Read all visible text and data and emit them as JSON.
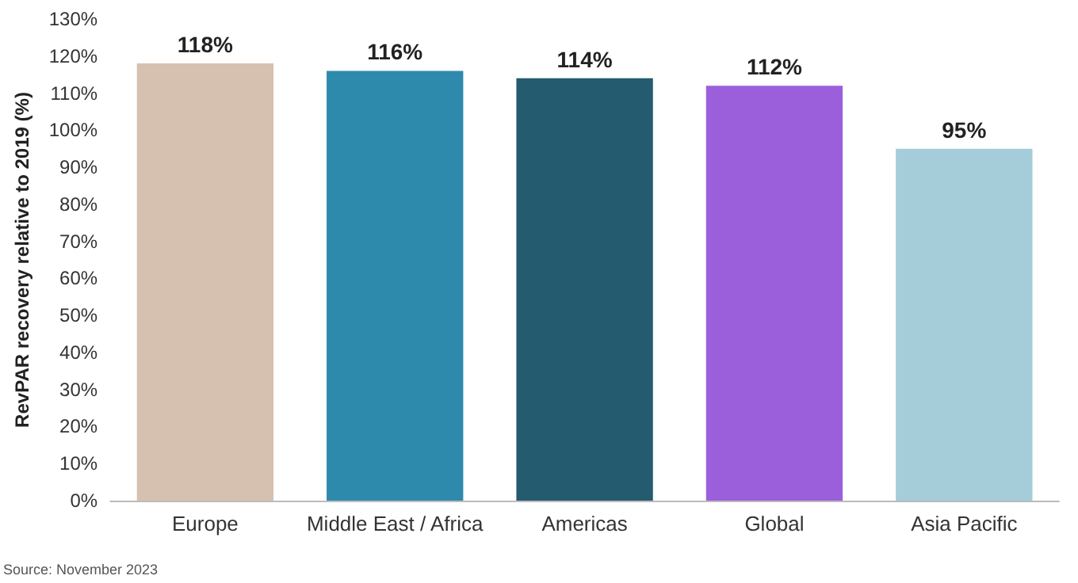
{
  "chart_data": {
    "type": "bar",
    "ylabel": "RevPAR recovery relative to 2019 (%)",
    "categories": [
      "Europe",
      "Middle East / Africa",
      "Americas",
      "Global",
      "Asia Pacific"
    ],
    "values": [
      118,
      116,
      114,
      112,
      95
    ],
    "colors": [
      "#d6c1b1",
      "#2e8aad",
      "#245b6e",
      "#9b5fdb",
      "#a4cdd9"
    ],
    "value_labels": [
      "118%",
      "116%",
      "114%",
      "112%",
      "95%"
    ],
    "ylim": [
      0,
      130
    ],
    "yticks": [
      {
        "value": 0,
        "label": "0%"
      },
      {
        "value": 10,
        "label": "10%"
      },
      {
        "value": 20,
        "label": "20%"
      },
      {
        "value": 30,
        "label": "30%"
      },
      {
        "value": 40,
        "label": "40%"
      },
      {
        "value": 50,
        "label": "50%"
      },
      {
        "value": 60,
        "label": "60%"
      },
      {
        "value": 70,
        "label": "70%"
      },
      {
        "value": 80,
        "label": "80%"
      },
      {
        "value": 90,
        "label": "90%"
      },
      {
        "value": 100,
        "label": "100%"
      },
      {
        "value": 110,
        "label": "110%"
      },
      {
        "value": 120,
        "label": "120%"
      },
      {
        "value": 130,
        "label": "130%"
      }
    ],
    "grid": false,
    "annotations": [
      "Source: November 2023"
    ]
  }
}
